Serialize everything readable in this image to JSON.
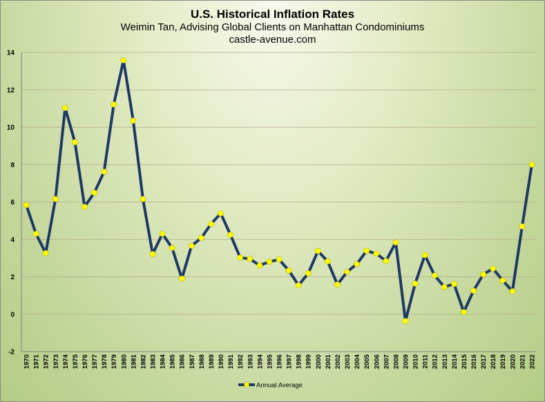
{
  "title": "U.S. Historical Inflation Rates",
  "subtitle": "Weimin Tan, Advising Global Clients on Manhattan Condominiums",
  "source": "castle-avenue.com",
  "chart_data": {
    "type": "line",
    "title": "U.S. Historical Inflation Rates",
    "xlabel": "",
    "ylabel": "",
    "ylim": [
      -2,
      14
    ],
    "yticks": [
      -2,
      0,
      2,
      4,
      6,
      8,
      10,
      12,
      14
    ],
    "grid": true,
    "legend_position": "bottom",
    "x": [
      1970,
      1971,
      1972,
      1973,
      1974,
      1975,
      1976,
      1977,
      1978,
      1979,
      1980,
      1981,
      1982,
      1983,
      1984,
      1985,
      1986,
      1987,
      1988,
      1989,
      1990,
      1991,
      1992,
      1993,
      1994,
      1995,
      1996,
      1997,
      1998,
      1999,
      2000,
      2001,
      2002,
      2003,
      2004,
      2005,
      2006,
      2007,
      2008,
      2009,
      2010,
      2011,
      2012,
      2013,
      2014,
      2015,
      2016,
      2017,
      2018,
      2019,
      2020,
      2021,
      2022
    ],
    "series": [
      {
        "name": "Annual Average",
        "line_color": "#1f3864",
        "marker_color": "#ffff00",
        "values": [
          5.84,
          4.3,
          3.27,
          6.16,
          11.03,
          9.2,
          5.75,
          6.5,
          7.62,
          11.22,
          13.58,
          10.35,
          6.16,
          3.22,
          4.3,
          3.55,
          1.91,
          3.66,
          4.08,
          4.83,
          5.39,
          4.25,
          3.03,
          2.96,
          2.61,
          2.81,
          2.93,
          2.34,
          1.55,
          2.19,
          3.38,
          2.83,
          1.59,
          2.27,
          2.68,
          3.39,
          3.24,
          2.85,
          3.84,
          -0.36,
          1.64,
          3.16,
          2.07,
          1.46,
          1.62,
          0.12,
          1.26,
          2.13,
          2.44,
          1.81,
          1.23,
          4.7,
          8.0
        ]
      }
    ]
  }
}
